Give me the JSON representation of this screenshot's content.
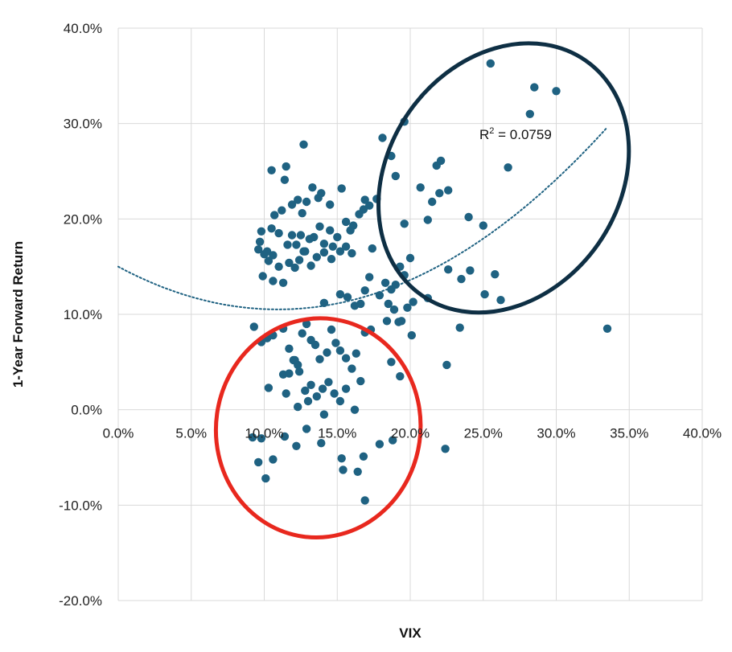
{
  "chart_data": {
    "type": "scatter",
    "xlabel": "VIX",
    "ylabel": "1-Year Forward Return",
    "xlim": [
      0,
      40
    ],
    "ylim": [
      -20,
      40
    ],
    "x_ticks": [
      "0.0%",
      "5.0%",
      "10.0%",
      "15.0%",
      "20.0%",
      "25.0%",
      "30.0%",
      "35.0%",
      "40.0%"
    ],
    "y_ticks": [
      "-20.0%",
      "-10.0%",
      "0.0%",
      "10.0%",
      "20.0%",
      "30.0%",
      "40.0%"
    ],
    "grid": true,
    "legend": "none",
    "colors": {
      "points": "#1f6282",
      "trendline": "#1f6282",
      "grid": "#d9d9d9",
      "high_vix_ellipse": "#0e2f44",
      "low_return_ellipse": "#e8281e"
    },
    "trendline": {
      "type": "polynomial-2",
      "style": "dotted",
      "x_range": [
        0,
        33.5
      ],
      "coefficients": [
        15.0,
        -0.82,
        0.0375
      ],
      "label_prefix": "R",
      "label_sup": "2",
      "label_value": " = 0.0759"
    },
    "annotations": {
      "high_vix_ellipse": {
        "cx": 26.4,
        "cy": 24.3,
        "rx": 7.9,
        "ry": 15.0,
        "rotation": 35
      },
      "low_return_ellipse": {
        "cx": 13.7,
        "cy": -1.9,
        "rx": 7.0,
        "ry": 11.5,
        "rotation": 8
      }
    },
    "series": [
      {
        "points": [
          [
            9.6,
            16.8
          ],
          [
            9.7,
            17.6
          ],
          [
            9.8,
            18.7
          ],
          [
            10.0,
            16.3
          ],
          [
            9.9,
            14.0
          ],
          [
            10.3,
            15.6
          ],
          [
            10.6,
            16.2
          ],
          [
            10.2,
            16.6
          ],
          [
            10.5,
            19.0
          ],
          [
            10.7,
            20.4
          ],
          [
            10.5,
            25.1
          ],
          [
            11.2,
            20.9
          ],
          [
            11.5,
            25.5
          ],
          [
            11.4,
            24.1
          ],
          [
            11.9,
            21.5
          ],
          [
            12.3,
            22.0
          ],
          [
            12.6,
            20.6
          ],
          [
            12.9,
            21.8
          ],
          [
            13.3,
            23.3
          ],
          [
            13.7,
            22.2
          ],
          [
            13.9,
            22.7
          ],
          [
            14.5,
            21.5
          ],
          [
            11.0,
            18.5
          ],
          [
            11.6,
            17.3
          ],
          [
            11.9,
            18.3
          ],
          [
            12.2,
            17.3
          ],
          [
            12.5,
            18.3
          ],
          [
            12.7,
            16.6
          ],
          [
            13.1,
            17.9
          ],
          [
            13.4,
            18.1
          ],
          [
            13.8,
            19.2
          ],
          [
            14.1,
            17.4
          ],
          [
            14.5,
            18.8
          ],
          [
            14.7,
            17.1
          ],
          [
            15.0,
            18.1
          ],
          [
            15.3,
            23.2
          ],
          [
            15.6,
            19.7
          ],
          [
            15.9,
            18.8
          ],
          [
            16.1,
            19.3
          ],
          [
            16.5,
            20.5
          ],
          [
            16.8,
            21.0
          ],
          [
            16.9,
            22.0
          ],
          [
            17.2,
            21.4
          ],
          [
            17.4,
            16.9
          ],
          [
            10.6,
            13.5
          ],
          [
            11.0,
            15.0
          ],
          [
            11.3,
            13.3
          ],
          [
            11.7,
            15.4
          ],
          [
            12.1,
            14.9
          ],
          [
            12.4,
            15.7
          ],
          [
            12.8,
            16.6
          ],
          [
            13.2,
            15.1
          ],
          [
            13.6,
            16.0
          ],
          [
            14.1,
            16.5
          ],
          [
            14.6,
            15.8
          ],
          [
            15.2,
            16.6
          ],
          [
            15.6,
            17.1
          ],
          [
            16.0,
            16.4
          ],
          [
            12.7,
            27.8
          ],
          [
            9.3,
            8.7
          ],
          [
            9.8,
            7.1
          ],
          [
            10.2,
            7.5
          ],
          [
            10.6,
            7.8
          ],
          [
            11.3,
            8.5
          ],
          [
            11.7,
            6.4
          ],
          [
            12.0,
            5.2
          ],
          [
            12.3,
            4.7
          ],
          [
            12.6,
            8.0
          ],
          [
            12.9,
            9.0
          ],
          [
            13.2,
            7.3
          ],
          [
            13.5,
            6.8
          ],
          [
            13.8,
            5.3
          ],
          [
            14.3,
            6.0
          ],
          [
            14.6,
            8.4
          ],
          [
            14.9,
            7.0
          ],
          [
            15.2,
            6.2
          ],
          [
            15.6,
            5.4
          ],
          [
            16.0,
            4.3
          ],
          [
            16.3,
            5.9
          ],
          [
            16.6,
            3.0
          ],
          [
            16.9,
            8.1
          ],
          [
            17.3,
            8.4
          ],
          [
            11.3,
            3.7
          ],
          [
            11.7,
            3.8
          ],
          [
            12.1,
            5.2
          ],
          [
            12.4,
            4.0
          ],
          [
            12.8,
            2.0
          ],
          [
            13.2,
            2.6
          ],
          [
            13.6,
            1.4
          ],
          [
            14.0,
            2.2
          ],
          [
            14.4,
            2.9
          ],
          [
            14.8,
            1.7
          ],
          [
            15.2,
            0.9
          ],
          [
            15.6,
            2.2
          ],
          [
            16.2,
            0.0
          ],
          [
            10.3,
            2.3
          ],
          [
            11.5,
            1.7
          ],
          [
            12.3,
            0.3
          ],
          [
            13.0,
            0.9
          ],
          [
            14.1,
            -0.5
          ],
          [
            9.2,
            -2.9
          ],
          [
            9.8,
            -3.0
          ],
          [
            9.6,
            -5.5
          ],
          [
            10.1,
            -7.2
          ],
          [
            10.6,
            -5.2
          ],
          [
            11.4,
            -2.8
          ],
          [
            12.2,
            -3.8
          ],
          [
            12.9,
            -2.0
          ],
          [
            13.9,
            -3.5
          ],
          [
            15.3,
            -5.1
          ],
          [
            15.4,
            -6.3
          ],
          [
            16.4,
            -6.5
          ],
          [
            16.8,
            -4.9
          ],
          [
            16.9,
            -9.5
          ],
          [
            17.9,
            -3.6
          ],
          [
            18.8,
            -3.2
          ],
          [
            16.6,
            11.1
          ],
          [
            16.9,
            12.5
          ],
          [
            17.2,
            13.9
          ],
          [
            17.9,
            12.0
          ],
          [
            18.3,
            13.3
          ],
          [
            18.7,
            12.6
          ],
          [
            19.0,
            13.1
          ],
          [
            19.3,
            15.0
          ],
          [
            19.6,
            14.1
          ],
          [
            20.0,
            15.9
          ],
          [
            20.2,
            11.3
          ],
          [
            18.5,
            11.1
          ],
          [
            18.9,
            10.5
          ],
          [
            19.4,
            9.3
          ],
          [
            19.8,
            10.7
          ],
          [
            17.7,
            22.1
          ],
          [
            18.1,
            28.5
          ],
          [
            18.7,
            26.6
          ],
          [
            19.0,
            24.5
          ],
          [
            19.6,
            30.2
          ],
          [
            20.7,
            23.3
          ],
          [
            21.5,
            21.8
          ],
          [
            21.8,
            25.6
          ],
          [
            22.1,
            26.1
          ],
          [
            22.6,
            23.0
          ],
          [
            22.0,
            22.7
          ],
          [
            21.2,
            19.9
          ],
          [
            19.6,
            19.5
          ],
          [
            21.2,
            11.7
          ],
          [
            22.6,
            14.7
          ],
          [
            23.5,
            13.7
          ],
          [
            24.1,
            14.6
          ],
          [
            24.0,
            20.2
          ],
          [
            25.0,
            19.3
          ],
          [
            25.1,
            12.1
          ],
          [
            25.8,
            14.2
          ],
          [
            26.2,
            11.5
          ],
          [
            26.7,
            25.4
          ],
          [
            25.5,
            36.3
          ],
          [
            28.2,
            31.0
          ],
          [
            28.5,
            33.8
          ],
          [
            30.0,
            33.4
          ],
          [
            33.5,
            8.5
          ],
          [
            23.4,
            8.6
          ],
          [
            22.5,
            4.7
          ],
          [
            22.4,
            -4.1
          ],
          [
            20.1,
            7.8
          ],
          [
            19.3,
            3.5
          ],
          [
            18.7,
            5.0
          ],
          [
            18.4,
            9.3
          ],
          [
            19.2,
            9.2
          ],
          [
            15.7,
            11.8
          ],
          [
            16.2,
            10.9
          ],
          [
            15.2,
            12.1
          ],
          [
            14.1,
            11.2
          ]
        ]
      }
    ]
  }
}
